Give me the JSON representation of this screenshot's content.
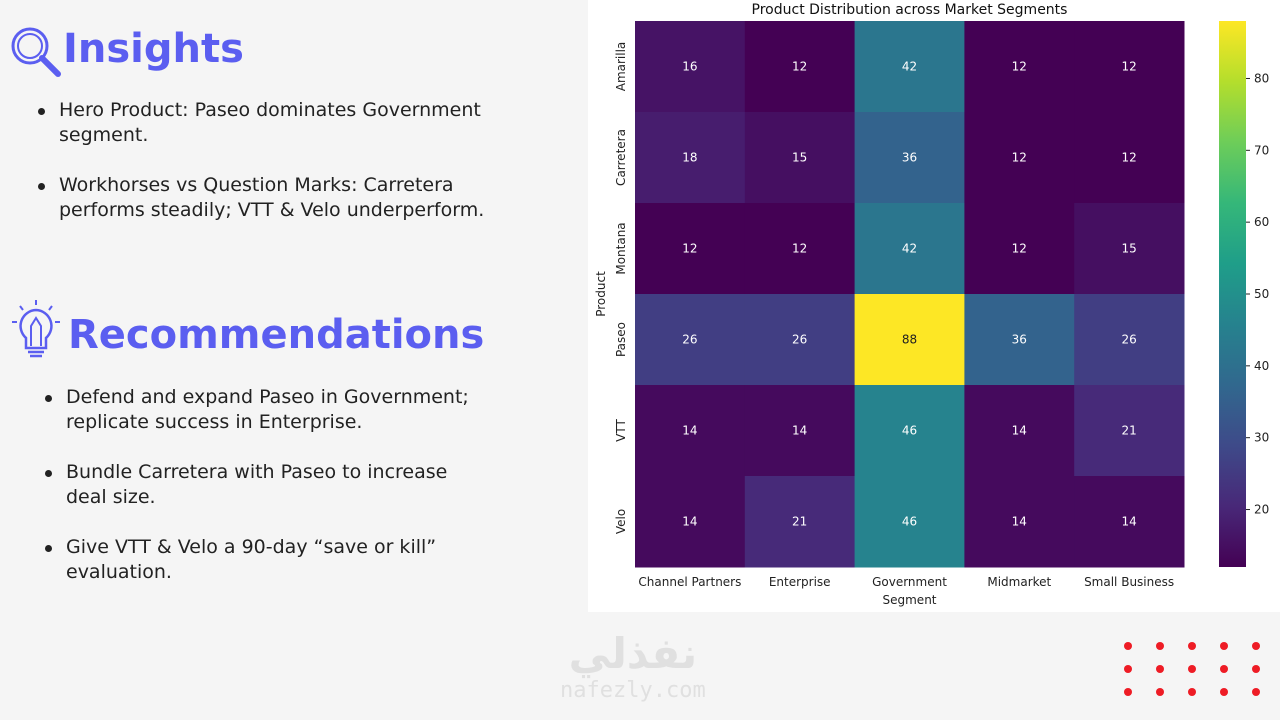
{
  "insights": {
    "title": "Insights",
    "items": [
      "Hero Product: Paseo dominates Government segment.",
      "Workhorses vs Question Marks: Carretera performs steadily; VTT & Velo underperform."
    ]
  },
  "recommendations": {
    "title": "Recommendations",
    "items": [
      "Defend and expand Paseo in Government; replicate success in Enterprise.",
      "Bundle Carretera with Paseo to increase deal size.",
      "Give VTT & Velo a 90-day “save or kill” evaluation."
    ]
  },
  "watermark": {
    "arabic": "نفذلي",
    "latin": "nafezly.com"
  },
  "chart_data": {
    "type": "heatmap",
    "title": "Product Distribution across Market Segments",
    "xlabel": "Segment",
    "ylabel": "Product",
    "x_categories": [
      "Channel Partners",
      "Enterprise",
      "Government",
      "Midmarket",
      "Small Business"
    ],
    "y_categories": [
      "Amarilla",
      "Carretera",
      "Montana",
      "Paseo",
      "VTT",
      "Velo"
    ],
    "values": [
      [
        16,
        12,
        42,
        12,
        12
      ],
      [
        18,
        15,
        36,
        12,
        12
      ],
      [
        12,
        12,
        42,
        12,
        15
      ],
      [
        26,
        26,
        88,
        36,
        26
      ],
      [
        14,
        14,
        46,
        14,
        21
      ],
      [
        14,
        21,
        46,
        14,
        14
      ]
    ],
    "colormap": "viridis",
    "vmin": 12,
    "vmax": 88,
    "colorbar_ticks": [
      20,
      30,
      40,
      50,
      60,
      70,
      80
    ]
  }
}
